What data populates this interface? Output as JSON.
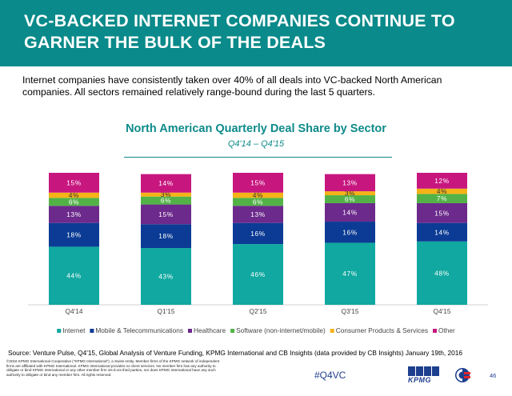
{
  "header": {
    "title": "VC-BACKED INTERNET COMPANIES CONTINUE TO GARNER THE BULK OF THE DEALS"
  },
  "intro": "Internet companies have consistently taken over 40% of all deals into VC-backed North American companies. All sectors remained relatively range-bound during the last 5 quarters.",
  "chart_data": {
    "type": "bar",
    "stacked": true,
    "title": "North American Quarterly Deal Share by Sector",
    "subtitle": "Q4'14 – Q4'15",
    "categories": [
      "Q4'14",
      "Q1'15",
      "Q2'15",
      "Q3'15",
      "Q4'15"
    ],
    "series": [
      {
        "name": "Internet",
        "color": "#10a8a0",
        "values": [
          44,
          43,
          46,
          47,
          48
        ]
      },
      {
        "name": "Mobile & Telecommunications",
        "color": "#0b3b94",
        "values": [
          18,
          18,
          16,
          16,
          14
        ]
      },
      {
        "name": "Healthcare",
        "color": "#6c2a8c",
        "values": [
          13,
          15,
          13,
          14,
          15
        ]
      },
      {
        "name": "Software (non-internet/mobile)",
        "color": "#52b247",
        "values": [
          6,
          6,
          6,
          6,
          7
        ]
      },
      {
        "name": "Consumer Products & Services",
        "color": "#f5b318",
        "values": [
          4,
          3,
          4,
          3,
          4
        ]
      },
      {
        "name": "Other",
        "color": "#c7177f",
        "values": [
          15,
          14,
          15,
          13,
          12
        ]
      }
    ],
    "ylim": [
      0,
      100
    ],
    "grid": false,
    "legend_position": "bottom"
  },
  "source": "Source: Venture Pulse, Q4'15, Global Analysis of Venture Funding, KPMG International and CB Insights (data provided by CB Insights) January 19th, 2016",
  "legal": "©2016 KPMG International Cooperative (\"KPMG International\"), a Swiss entity. Member firms of the KPMG network of independent firms are affiliated with KPMG International. KPMG International provides no client services. No member firm has any authority to obligate or bind KPMG International or any other member firm vis-à-vis third parties, nor does KPMG International have any such authority to obligate or bind any member firm. All rights reserved.",
  "footer": {
    "hashtag": "#Q4VC",
    "logo_text": "KPMG",
    "page_number": "46"
  }
}
